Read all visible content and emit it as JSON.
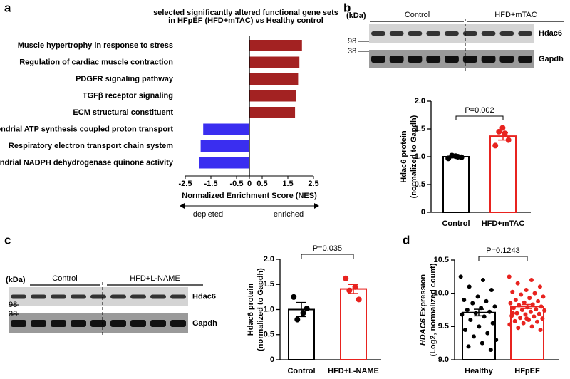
{
  "panel_labels": [
    "a",
    "b",
    "c",
    "d"
  ],
  "blots": [
    {
      "unit": "(kDa)",
      "markers": [
        "98",
        "38"
      ],
      "groups": [
        "Control",
        "HFD+mTAC"
      ],
      "proteins": [
        "Hdac6",
        "Gapdh"
      ]
    },
    {
      "unit": "(kDa)",
      "markers": [
        "98",
        "38"
      ],
      "groups": [
        "Control",
        "HFD+L-NAME"
      ],
      "proteins": [
        "Hdac6",
        "Gapdh"
      ]
    }
  ],
  "chart_data": [
    {
      "type": "hbar",
      "title": [
        "selected significantly altered functional gene sets",
        "in HFpEF (HFD+mTAC) vs Healthy control"
      ],
      "categories": [
        "Muscle hypertrophy in response to stress",
        "Regulation of cardiac muscle contraction",
        "PDGFR signaling pathway",
        "TGFβ receptor signaling",
        "ECM structural constituent",
        "Mitochondrial ATP synthesis coupled proton transport",
        "Respiratory electron transport chain system",
        "Mitochondrial NADPH dehydrogenase quinone activity"
      ],
      "values": [
        2.05,
        1.95,
        1.9,
        1.82,
        1.78,
        -1.8,
        -1.9,
        -1.95
      ],
      "bar_colors": [
        "#a32222",
        "#a32222",
        "#a32222",
        "#a32222",
        "#a32222",
        "#3a2ef0",
        "#3a2ef0",
        "#3a2ef0"
      ],
      "xlabel": "Normalized Enrichment Score (NES)",
      "xlim": [
        -2.5,
        2.5
      ],
      "xticks": [
        -2.5,
        -1.5,
        -0.5,
        0,
        0.5,
        1.5,
        2.5
      ],
      "annotations": [
        "depleted",
        "enriched"
      ]
    },
    {
      "type": "bar",
      "categories": [
        "Control",
        "HFD+mTAC"
      ],
      "values": [
        1.0,
        1.37
      ],
      "errors": [
        0.02,
        0.07
      ],
      "points": [
        [
          0.97,
          1.0,
          1.02,
          0.99,
          1.01
        ],
        [
          1.2,
          1.42,
          1.45,
          1.3,
          1.52
        ]
      ],
      "colors": [
        "#000000",
        "#e8231f"
      ],
      "ylabel": [
        "Hdac6 protein",
        "(normalized to Gapdh)"
      ],
      "ylim": [
        0,
        2
      ],
      "yticks": [
        0,
        0.5,
        {
          "value": 1,
          "label": "1.0"
        },
        1.5,
        {
          "value": 2,
          "label": "2.0"
        }
      ],
      "annotation": "P=0.002"
    },
    {
      "type": "bar",
      "categories": [
        "Control",
        "HFD+L-NAME"
      ],
      "values": [
        1.0,
        1.41
      ],
      "errors": [
        0.14,
        0.09
      ],
      "points": [
        [
          1.25,
          0.93,
          0.8,
          1.02
        ],
        [
          1.62,
          1.45,
          1.38,
          1.2
        ]
      ],
      "colors": [
        "#000000",
        "#e8231f"
      ],
      "ylabel": [
        "Hdac6 protein",
        "(normalized to Gapdh)"
      ],
      "ylim": [
        0,
        2
      ],
      "yticks": [
        0,
        0.5,
        {
          "value": 1,
          "label": "1.0"
        },
        1.5,
        {
          "value": 2,
          "label": "2.0"
        }
      ],
      "annotation": "P=0.035"
    },
    {
      "type": "bar",
      "categories": [
        "Healthy",
        "HFpEF"
      ],
      "values": [
        9.71,
        9.8
      ],
      "errors": [
        0.05,
        0.03
      ],
      "points": [
        [
          10.25,
          10.2,
          10.1,
          10.05,
          9.95,
          9.9,
          9.88,
          9.85,
          9.8,
          9.78,
          9.75,
          9.72,
          9.7,
          9.68,
          9.65,
          9.6,
          9.55,
          9.5,
          9.45,
          9.4,
          9.35,
          9.3,
          9.25,
          9.2,
          9.15
        ],
        [
          10.25,
          10.2,
          10.15,
          10.1,
          10.05,
          10.02,
          10.0,
          9.98,
          9.95,
          9.93,
          9.9,
          9.88,
          9.86,
          9.85,
          9.83,
          9.82,
          9.8,
          9.79,
          9.78,
          9.76,
          9.75,
          9.74,
          9.72,
          9.7,
          9.69,
          9.68,
          9.66,
          9.65,
          9.63,
          9.62,
          9.6,
          9.58,
          9.57,
          9.55,
          9.53,
          9.5,
          9.48,
          9.45,
          9.62,
          9.7
        ]
      ],
      "colors": [
        "#000000",
        "#e8231f"
      ],
      "ylabel": [
        [
          "HDAC6",
          " Expression"
        ],
        "(Log2, normalized count)"
      ],
      "ylim": [
        9,
        10.5
      ],
      "yticks": [
        {
          "value": 9,
          "label": "9.0"
        },
        9.5,
        {
          "value": 10,
          "label": "10.0"
        },
        10.5
      ],
      "annotation": "P=0.1243"
    }
  ]
}
